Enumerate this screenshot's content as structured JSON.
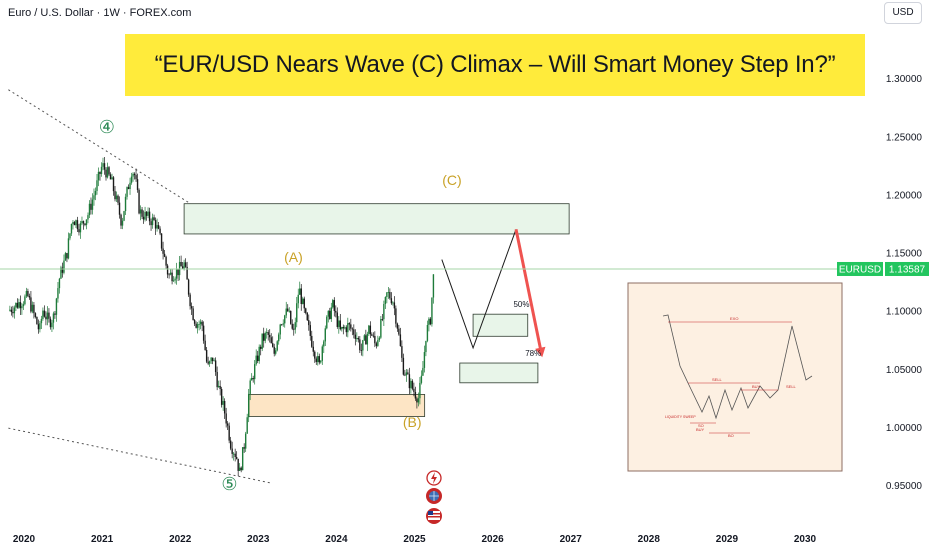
{
  "header": {
    "symbol_title": "Euro / U.S. Dollar · 1W · FOREX.com",
    "currency_button": "USD"
  },
  "banner": {
    "text": "“EUR/USD Nears Wave (C) Climax – Will Smart Money Step In?”"
  },
  "price_label": {
    "symbol": "EURUSD",
    "value": "1.13587",
    "color": "#22c55e"
  },
  "chart_data": {
    "type": "candlestick",
    "title": "“EUR/USD Nears Wave (C) Climax – Will Smart Money Step In?”",
    "x_ticks": [
      "2020",
      "2021",
      "2022",
      "2023",
      "2024",
      "2025",
      "2026",
      "2027",
      "2028",
      "2029",
      "2030"
    ],
    "y_ticks": [
      "1.30000",
      "1.25000",
      "1.20000",
      "1.15000",
      "1.10000",
      "1.05000",
      "1.00000",
      "0.95000"
    ],
    "ylim": [
      0.93,
      1.33
    ],
    "xlim": [
      2019.8,
      2030.4
    ],
    "last_price": 1.13587,
    "price_series": [
      {
        "t": 2019.8,
        "p": 1.1
      },
      {
        "t": 2019.92,
        "p": 1.106
      },
      {
        "t": 2020.05,
        "p": 1.112
      },
      {
        "t": 2020.17,
        "p": 1.088
      },
      {
        "t": 2020.2,
        "p": 1.082
      },
      {
        "t": 2020.24,
        "p": 1.101
      },
      {
        "t": 2020.32,
        "p": 1.09
      },
      {
        "t": 2020.38,
        "p": 1.095
      },
      {
        "t": 2020.45,
        "p": 1.127
      },
      {
        "t": 2020.55,
        "p": 1.15
      },
      {
        "t": 2020.62,
        "p": 1.18
      },
      {
        "t": 2020.72,
        "p": 1.172
      },
      {
        "t": 2020.82,
        "p": 1.183
      },
      {
        "t": 2020.92,
        "p": 1.205
      },
      {
        "t": 2021.0,
        "p": 1.225
      },
      {
        "t": 2021.05,
        "p": 1.22
      },
      {
        "t": 2021.12,
        "p": 1.211
      },
      {
        "t": 2021.2,
        "p": 1.19
      },
      {
        "t": 2021.25,
        "p": 1.176
      },
      {
        "t": 2021.3,
        "p": 1.195
      },
      {
        "t": 2021.38,
        "p": 1.222
      },
      {
        "t": 2021.42,
        "p": 1.216
      },
      {
        "t": 2021.48,
        "p": 1.185
      },
      {
        "t": 2021.58,
        "p": 1.18
      },
      {
        "t": 2021.68,
        "p": 1.176
      },
      {
        "t": 2021.75,
        "p": 1.16
      },
      {
        "t": 2021.85,
        "p": 1.13
      },
      {
        "t": 2021.95,
        "p": 1.133
      },
      {
        "t": 2022.05,
        "p": 1.14
      },
      {
        "t": 2022.15,
        "p": 1.1
      },
      {
        "t": 2022.2,
        "p": 1.09
      },
      {
        "t": 2022.28,
        "p": 1.088
      },
      {
        "t": 2022.35,
        "p": 1.05
      },
      {
        "t": 2022.42,
        "p": 1.06
      },
      {
        "t": 2022.5,
        "p": 1.03
      },
      {
        "t": 2022.58,
        "p": 1.01
      },
      {
        "t": 2022.65,
        "p": 0.985
      },
      {
        "t": 2022.72,
        "p": 0.975
      },
      {
        "t": 2022.76,
        "p": 0.96
      },
      {
        "t": 2022.82,
        "p": 0.985
      },
      {
        "t": 2022.88,
        "p": 1.03
      },
      {
        "t": 2022.95,
        "p": 1.05
      },
      {
        "t": 2023.05,
        "p": 1.075
      },
      {
        "t": 2023.12,
        "p": 1.08
      },
      {
        "t": 2023.2,
        "p": 1.062
      },
      {
        "t": 2023.28,
        "p": 1.09
      },
      {
        "t": 2023.38,
        "p": 1.1
      },
      {
        "t": 2023.45,
        "p": 1.078
      },
      {
        "t": 2023.52,
        "p": 1.12
      },
      {
        "t": 2023.6,
        "p": 1.095
      },
      {
        "t": 2023.7,
        "p": 1.07
      },
      {
        "t": 2023.78,
        "p": 1.052
      },
      {
        "t": 2023.85,
        "p": 1.085
      },
      {
        "t": 2023.95,
        "p": 1.105
      },
      {
        "t": 2024.05,
        "p": 1.082
      },
      {
        "t": 2024.15,
        "p": 1.087
      },
      {
        "t": 2024.25,
        "p": 1.08
      },
      {
        "t": 2024.32,
        "p": 1.066
      },
      {
        "t": 2024.42,
        "p": 1.085
      },
      {
        "t": 2024.5,
        "p": 1.07
      },
      {
        "t": 2024.58,
        "p": 1.09
      },
      {
        "t": 2024.65,
        "p": 1.115
      },
      {
        "t": 2024.72,
        "p": 1.11
      },
      {
        "t": 2024.78,
        "p": 1.088
      },
      {
        "t": 2024.85,
        "p": 1.052
      },
      {
        "t": 2024.92,
        "p": 1.04
      },
      {
        "t": 2025.0,
        "p": 1.03
      },
      {
        "t": 2025.05,
        "p": 1.025
      },
      {
        "t": 2025.1,
        "p": 1.045
      },
      {
        "t": 2025.15,
        "p": 1.082
      },
      {
        "t": 2025.2,
        "p": 1.09
      },
      {
        "t": 2025.25,
        "p": 1.136
      }
    ],
    "zones": [
      {
        "name": "upper-target-zone",
        "t1": 2022.05,
        "t2": 2026.98,
        "p1": 1.192,
        "p2": 1.166,
        "fill": "#e8f5e9"
      },
      {
        "name": "demand-zone",
        "t1": 2022.88,
        "t2": 2025.13,
        "p1": 1.028,
        "p2": 1.009,
        "fill": "#fde5c5"
      },
      {
        "name": "fib-50-zone",
        "t1": 2025.75,
        "t2": 2026.45,
        "p1": 1.097,
        "p2": 1.078,
        "fill": "#e8f5e9"
      },
      {
        "name": "fib-78-zone",
        "t1": 2025.58,
        "t2": 2026.58,
        "p1": 1.055,
        "p2": 1.038,
        "fill": "#e8f5e9"
      }
    ],
    "projection_black": [
      {
        "t": 2025.35,
        "p": 1.144
      },
      {
        "t": 2025.75,
        "p": 1.068
      },
      {
        "t": 2026.3,
        "p": 1.17
      }
    ],
    "projection_red": [
      {
        "t": 2026.3,
        "p": 1.17
      },
      {
        "t": 2026.62,
        "p": 1.065
      }
    ],
    "trendlines": [
      {
        "t1": 2019.8,
        "p1": 1.29,
        "t2": 2022.18,
        "p2": 1.19
      },
      {
        "t1": 2019.8,
        "p1": 0.999,
        "t2": 2023.15,
        "p2": 0.952
      }
    ],
    "annotations": [
      {
        "text": "④",
        "t": 2021.06,
        "p": 1.253,
        "color": "#2e8b57",
        "size": 18
      },
      {
        "text": "⑤",
        "t": 2022.63,
        "p": 0.946,
        "color": "#2e8b57",
        "size": 18
      },
      {
        "text": "(A)",
        "t": 2023.45,
        "p": 1.142,
        "color": "#c9a227",
        "size": 14
      },
      {
        "text": "(B)",
        "t": 2024.97,
        "p": 1.0,
        "color": "#c9a227",
        "size": 14
      },
      {
        "text": "(C)",
        "t": 2025.48,
        "p": 1.208,
        "color": "#c9a227",
        "size": 14
      },
      {
        "text": "50%",
        "t": 2026.37,
        "p": 1.103,
        "color": "#131722",
        "size": 8
      },
      {
        "text": "78%",
        "t": 2026.52,
        "p": 1.061,
        "color": "#131722",
        "size": 8
      }
    ]
  },
  "inset": {
    "texts": [
      "EXO",
      "SELL",
      "BUY",
      "SELL",
      "BUY",
      "LIQUIDITY SWEEP",
      "SO",
      "BO"
    ]
  },
  "event_icons": [
    "lightning-icon",
    "globe-icon",
    "us-flag-icon"
  ]
}
